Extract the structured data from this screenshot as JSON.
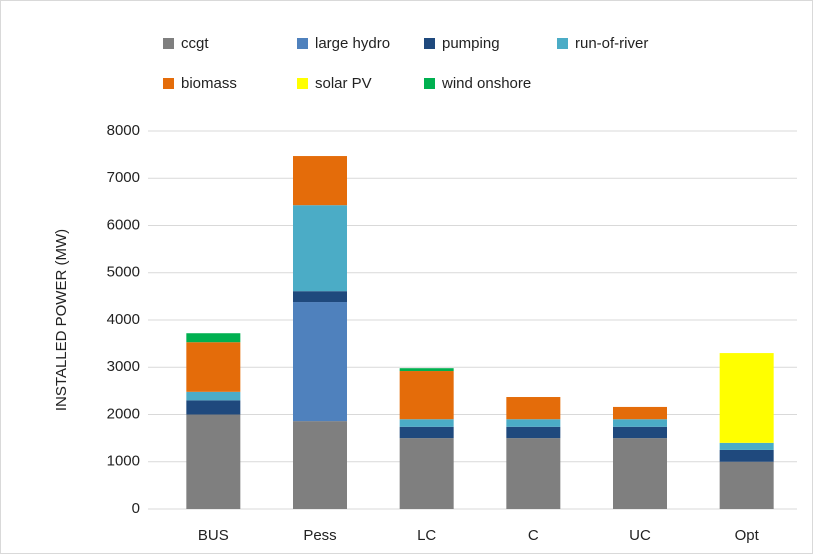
{
  "chart_data": {
    "type": "stacked_bar",
    "y_label": "INSTALLED POWER (MW)",
    "categories": [
      "BUS",
      "Pess",
      "LC",
      "C",
      "UC",
      "Opt"
    ],
    "series": [
      {
        "name": "ccgt",
        "color": "#7f7f7f",
        "values": [
          2000,
          1860,
          1500,
          1500,
          1500,
          1000
        ]
      },
      {
        "name": "large hydro",
        "color": "#4f81bd",
        "values": [
          0,
          2520,
          0,
          0,
          0,
          0
        ]
      },
      {
        "name": "pumping",
        "color": "#1f497d",
        "values": [
          300,
          230,
          240,
          240,
          240,
          250
        ]
      },
      {
        "name": "run-of-river",
        "color": "#4bacc6",
        "values": [
          180,
          1820,
          160,
          160,
          160,
          150
        ]
      },
      {
        "name": "biomass",
        "color": "#e46c0a",
        "values": [
          1050,
          1040,
          1020,
          470,
          260,
          0
        ]
      },
      {
        "name": "solar PV",
        "color": "#ffff00",
        "values": [
          0,
          0,
          0,
          0,
          0,
          1900
        ]
      },
      {
        "name": "wind onshore",
        "color": "#00b050",
        "values": [
          190,
          0,
          60,
          0,
          0,
          0
        ]
      }
    ],
    "ylim": [
      0,
      8000
    ],
    "yticks": [
      0,
      1000,
      2000,
      3000,
      4000,
      5000,
      6000,
      7000,
      8000
    ],
    "grid": true
  }
}
